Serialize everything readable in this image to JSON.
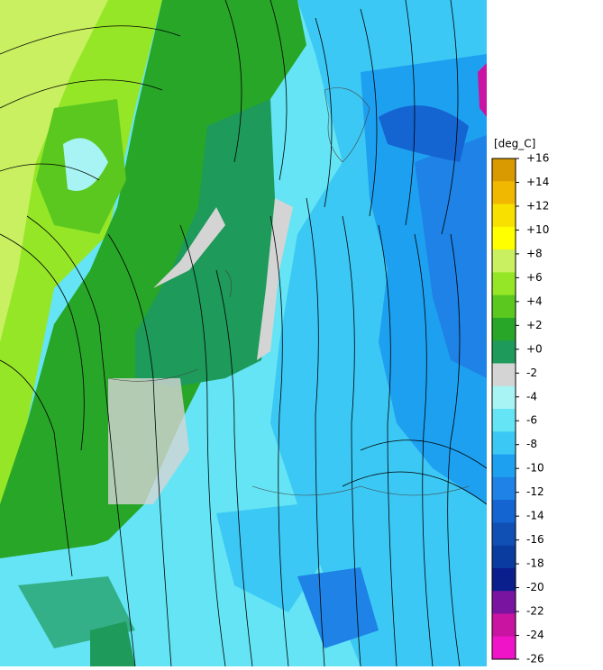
{
  "legend": {
    "unit": "[deg_C]",
    "labels": [
      "+16",
      "+14",
      "+12",
      "+10",
      "+8",
      "+6",
      "+4",
      "+2",
      "+0",
      "-2",
      "-4",
      "-6",
      "-8",
      "-10",
      "-12",
      "-14",
      "-16",
      "-18",
      "-20",
      "-22",
      "-24",
      "-26"
    ],
    "colors": [
      "#d89a00",
      "#f0b800",
      "#f8e000",
      "#ffff00",
      "#c8f060",
      "#96e628",
      "#5ac81e",
      "#28a628",
      "#1e9a5a",
      "#d4d4d4",
      "#a8f4f4",
      "#64e4f4",
      "#3cc8f4",
      "#1ea0f0",
      "#1e82e6",
      "#1464d2",
      "#1050b4",
      "#0a3ca0",
      "#0a1e8c",
      "#7814a0",
      "#c814a0",
      "#f014c8"
    ]
  }
}
